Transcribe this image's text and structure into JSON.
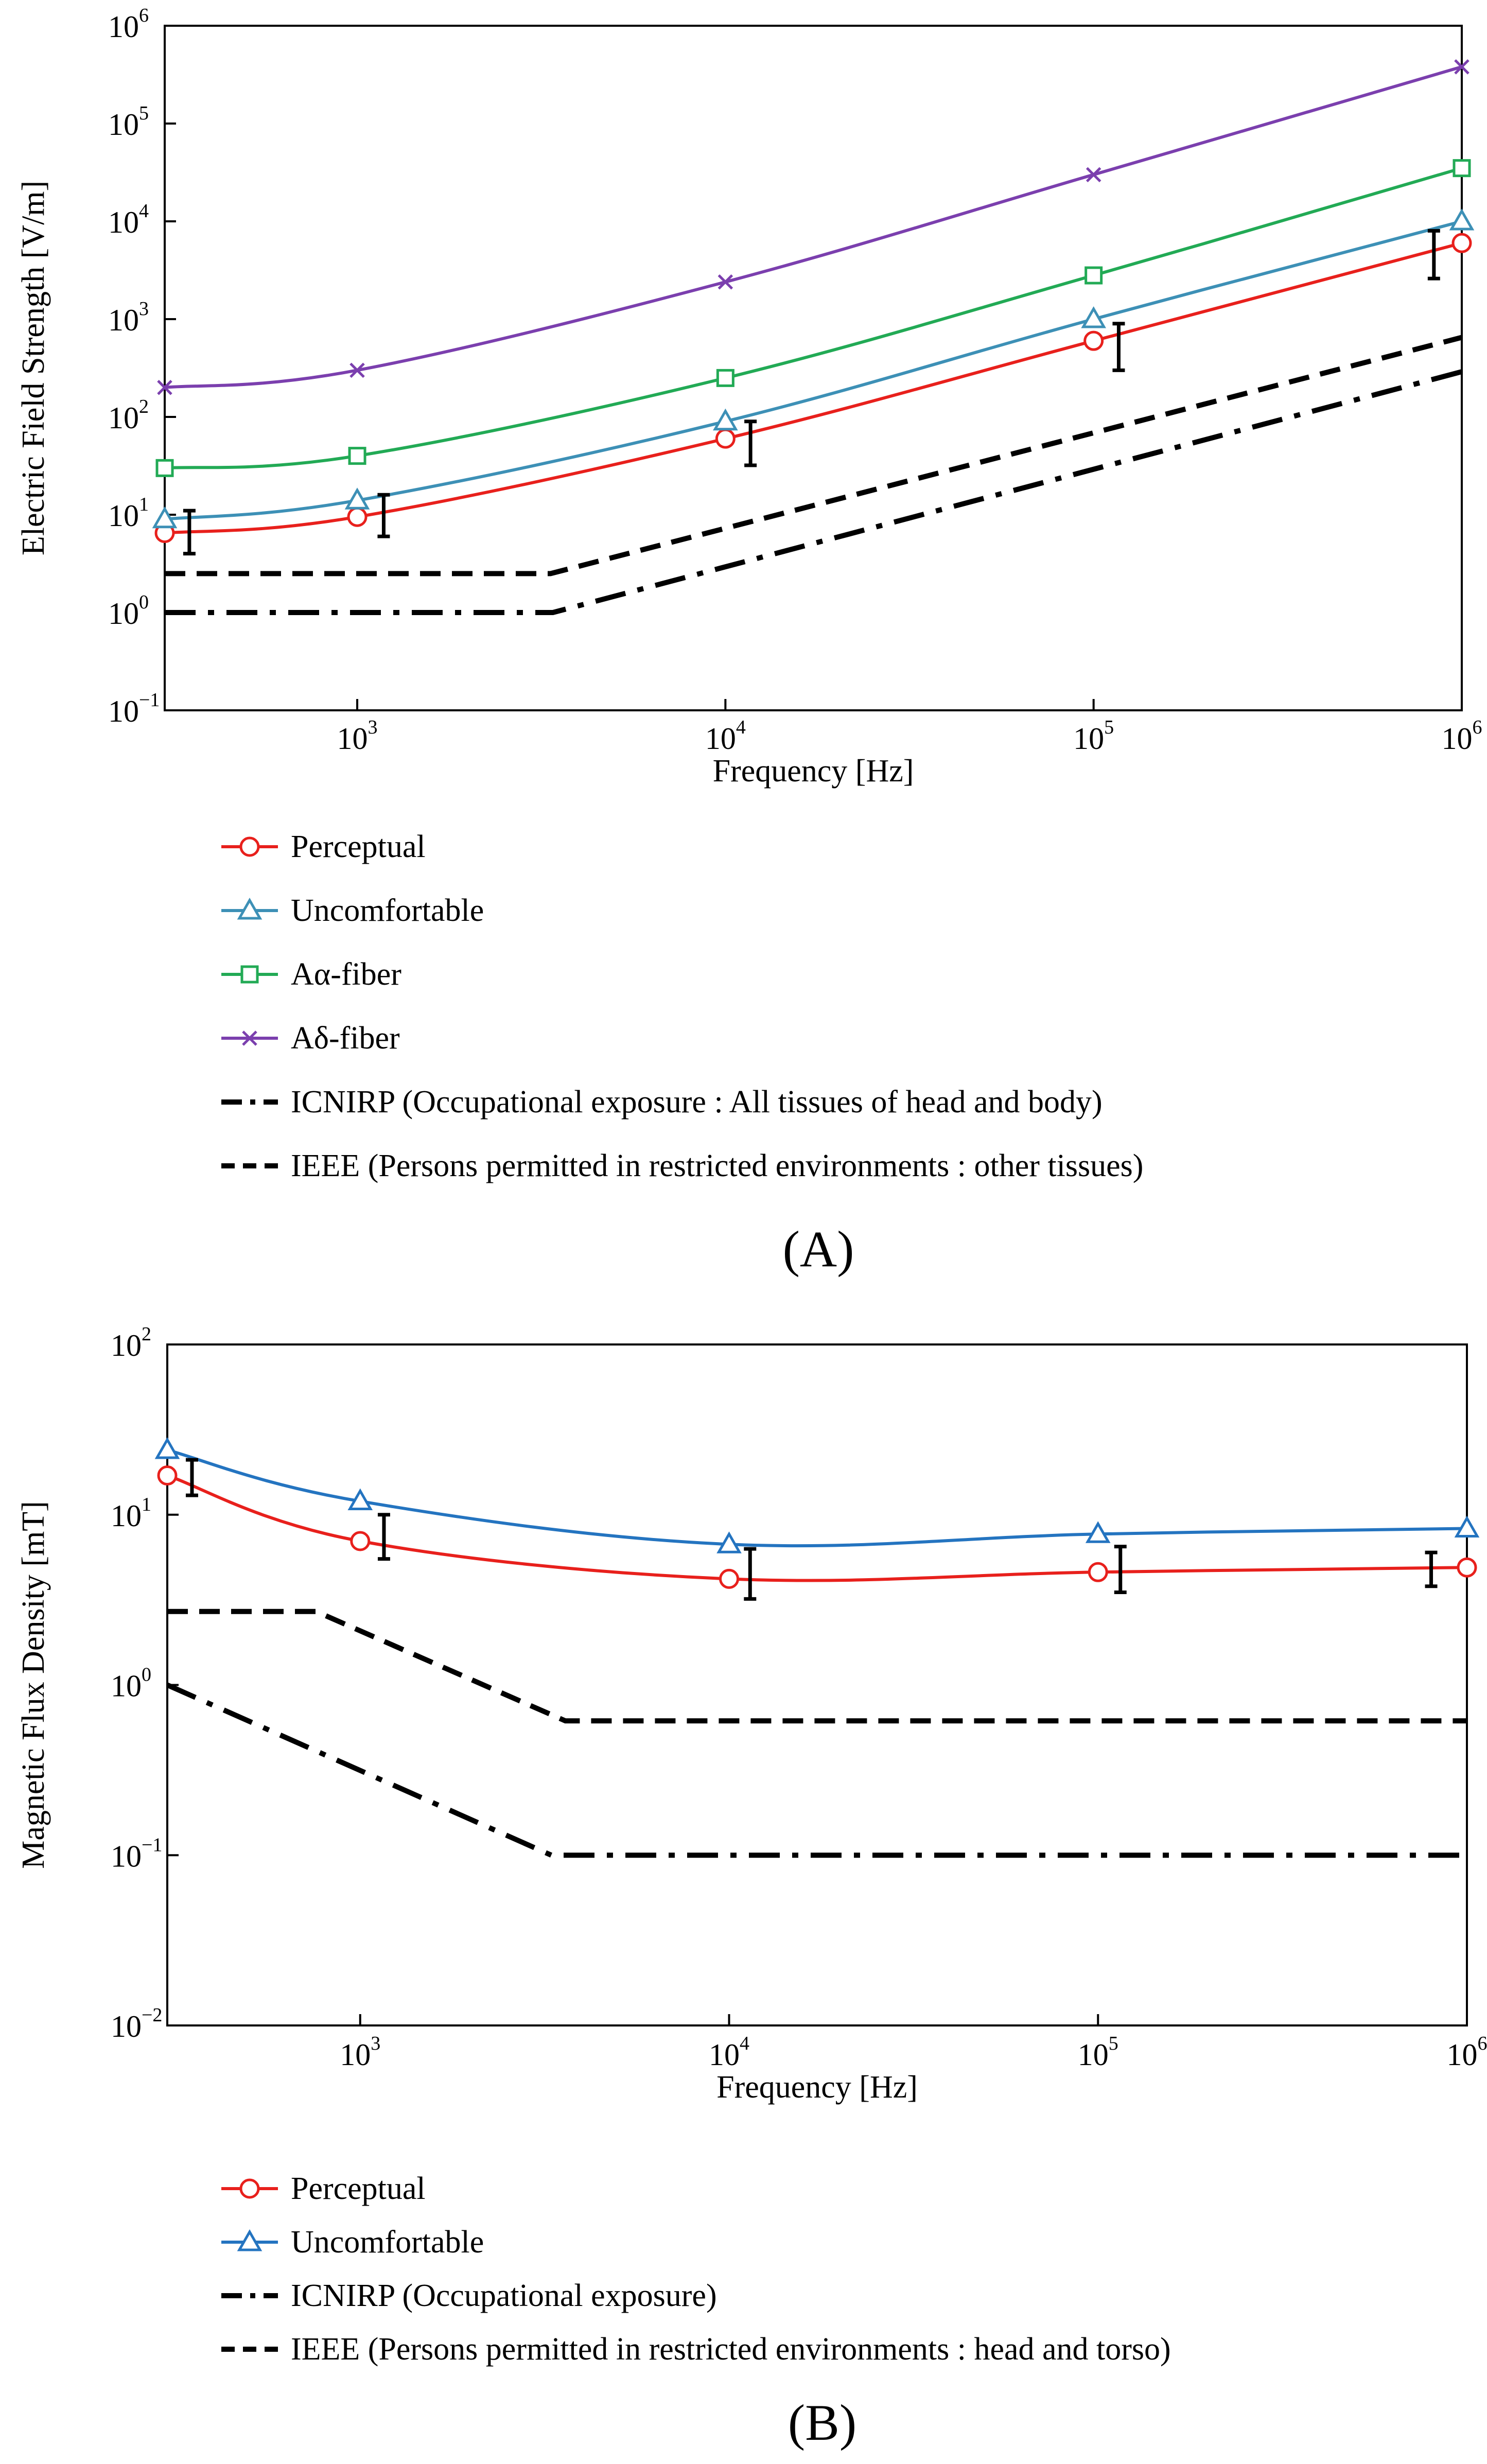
{
  "chart_data": [
    {
      "type": "line",
      "panel_label": "(A)",
      "xlabel": "Frequency [Hz]",
      "ylabel": "Electric Field Strength [V/m]",
      "x_scale": "log",
      "y_scale": "log",
      "xlim": [
        300,
        1000000
      ],
      "ylim": [
        0.1,
        1000000
      ],
      "x_ticks": [
        {
          "base": "10",
          "exp": "3",
          "value": 1000
        },
        {
          "base": "10",
          "exp": "4",
          "value": 10000
        },
        {
          "base": "10",
          "exp": "5",
          "value": 100000
        },
        {
          "base": "10",
          "exp": "6",
          "value": 1000000
        }
      ],
      "y_ticks": [
        {
          "base": "10",
          "exp": "−1",
          "value": 0.1
        },
        {
          "base": "10",
          "exp": "0",
          "value": 1
        },
        {
          "base": "10",
          "exp": "1",
          "value": 10
        },
        {
          "base": "10",
          "exp": "2",
          "value": 100
        },
        {
          "base": "10",
          "exp": "3",
          "value": 1000
        },
        {
          "base": "10",
          "exp": "4",
          "value": 10000
        },
        {
          "base": "10",
          "exp": "5",
          "value": 100000
        },
        {
          "base": "10",
          "exp": "6",
          "value": 1000000
        }
      ],
      "grid": false,
      "legend_position": "below",
      "series": [
        {
          "name": "Perceptual",
          "color": "#e8201c",
          "marker": "circle",
          "x": [
            300,
            1000,
            10000,
            100000,
            1000000
          ],
          "y": [
            6.5,
            9.5,
            60,
            600,
            6000
          ]
        },
        {
          "name": "Uncomfortable",
          "color": "#3d90b6",
          "marker": "triangle",
          "x": [
            300,
            1000,
            10000,
            100000,
            1000000
          ],
          "y": [
            9,
            14,
            90,
            1000,
            10000
          ]
        },
        {
          "name": "Aα-fiber",
          "color": "#22aa55",
          "marker": "square",
          "x": [
            300,
            1000,
            10000,
            100000,
            1000000
          ],
          "y": [
            30,
            40,
            250,
            2800,
            35000
          ]
        },
        {
          "name": "Aδ-fiber",
          "color": "#7b3fae",
          "marker": "x",
          "x": [
            300,
            1000,
            10000,
            100000,
            1000000
          ],
          "y": [
            200,
            300,
            2400,
            30000,
            380000
          ]
        },
        {
          "name": "ICNIRP (Occupational exposure : All tissues of head and body)",
          "color": "#000000",
          "style": "dashdot",
          "x": [
            300,
            3400,
            1000000
          ],
          "y": [
            1,
            1,
            290
          ]
        },
        {
          "name": "IEEE (Persons permitted in restricted environments : other tissues)",
          "color": "#000000",
          "style": "dashed",
          "x": [
            300,
            3350,
            1000000
          ],
          "y": [
            2.5,
            2.5,
            650
          ]
        }
      ],
      "error_bars": [
        {
          "x": 350,
          "low": 4,
          "high": 11
        },
        {
          "x": 1180,
          "low": 6,
          "high": 16
        },
        {
          "x": 11700,
          "low": 32,
          "high": 90
        },
        {
          "x": 117000,
          "low": 300,
          "high": 900
        },
        {
          "x": 840000,
          "low": 2600,
          "high": 8000
        }
      ]
    },
    {
      "type": "line",
      "panel_label": "(B)",
      "xlabel": "Frequency [Hz]",
      "ylabel": "Magnetic Flux Density [mT]",
      "x_scale": "log",
      "y_scale": "log",
      "xlim": [
        300,
        1000000
      ],
      "ylim": [
        0.01,
        100
      ],
      "x_ticks": [
        {
          "base": "10",
          "exp": "3",
          "value": 1000
        },
        {
          "base": "10",
          "exp": "4",
          "value": 10000
        },
        {
          "base": "10",
          "exp": "5",
          "value": 100000
        },
        {
          "base": "10",
          "exp": "6",
          "value": 1000000
        }
      ],
      "y_ticks": [
        {
          "base": "10",
          "exp": "−2",
          "value": 0.01
        },
        {
          "base": "10",
          "exp": "−1",
          "value": 0.1
        },
        {
          "base": "10",
          "exp": "0",
          "value": 1
        },
        {
          "base": "10",
          "exp": "1",
          "value": 10
        },
        {
          "base": "10",
          "exp": "2",
          "value": 100
        }
      ],
      "grid": false,
      "legend_position": "below",
      "series": [
        {
          "name": "Perceptual",
          "color": "#e8201c",
          "marker": "circle",
          "x": [
            300,
            1000,
            10000,
            100000,
            1000000
          ],
          "y": [
            17,
            7,
            4.2,
            4.6,
            4.9
          ]
        },
        {
          "name": "Uncomfortable",
          "color": "#2474c0",
          "marker": "triangle",
          "x": [
            300,
            1000,
            10000,
            100000,
            1000000
          ],
          "y": [
            24,
            12,
            6.7,
            7.7,
            8.3
          ]
        },
        {
          "name": "ICNIRP (Occupational exposure)",
          "color": "#000000",
          "style": "dashdot",
          "x": [
            300,
            3300,
            1000000
          ],
          "y": [
            1,
            0.1,
            0.1
          ]
        },
        {
          "name": "IEEE (Persons permitted in restricted environments : head and torso)",
          "color": "#000000",
          "style": "dashed",
          "x": [
            300,
            760,
            3600,
            1000000
          ],
          "y": [
            2.7,
            2.7,
            0.615,
            0.615
          ]
        }
      ],
      "error_bars": [
        {
          "x": 350,
          "low": 13,
          "high": 21
        },
        {
          "x": 1160,
          "low": 5.5,
          "high": 10
        },
        {
          "x": 11400,
          "low": 3.2,
          "high": 6.3
        },
        {
          "x": 115000,
          "low": 3.5,
          "high": 6.5
        },
        {
          "x": 800000,
          "low": 3.8,
          "high": 6.0
        }
      ]
    }
  ]
}
